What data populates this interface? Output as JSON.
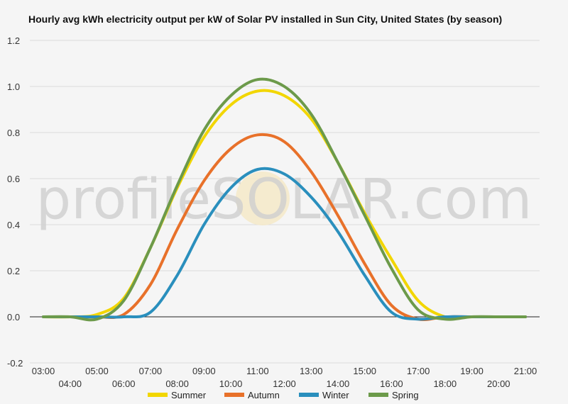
{
  "chart_data": {
    "type": "line",
    "title": "Hourly avg kWh electricity output per kW of Solar PV installed in Sun City, United States (by season)",
    "xlabel": "",
    "ylabel": "",
    "x": [
      "03:00",
      "04:00",
      "05:00",
      "06:00",
      "07:00",
      "08:00",
      "09:00",
      "10:00",
      "11:00",
      "12:00",
      "13:00",
      "14:00",
      "15:00",
      "16:00",
      "17:00",
      "18:00",
      "19:00",
      "20:00",
      "21:00"
    ],
    "ylim": [
      -0.2,
      1.2
    ],
    "yticks": [
      "-0.2",
      "0.0",
      "0.2",
      "0.4",
      "0.6",
      "0.8",
      "1.0",
      "1.2"
    ],
    "grid": true,
    "legend_position": "bottom",
    "series": [
      {
        "name": "Summer",
        "color": "#f2d600",
        "values": [
          0,
          0,
          0.01,
          0.08,
          0.3,
          0.56,
          0.78,
          0.92,
          0.98,
          0.96,
          0.86,
          0.67,
          0.45,
          0.25,
          0.07,
          0.0,
          0,
          0,
          0
        ]
      },
      {
        "name": "Autumn",
        "color": "#e8712a",
        "values": [
          0,
          0,
          0,
          0.01,
          0.14,
          0.38,
          0.59,
          0.73,
          0.79,
          0.76,
          0.63,
          0.44,
          0.23,
          0.05,
          -0.01,
          0,
          0,
          0,
          0
        ]
      },
      {
        "name": "Winter",
        "color": "#2a8fbd",
        "values": [
          0,
          0,
          0,
          0,
          0.02,
          0.18,
          0.4,
          0.56,
          0.64,
          0.62,
          0.52,
          0.37,
          0.18,
          0.02,
          -0.01,
          0,
          0,
          0,
          0
        ]
      },
      {
        "name": "Spring",
        "color": "#6c9a4a",
        "values": [
          0,
          0,
          -0.01,
          0.07,
          0.3,
          0.57,
          0.81,
          0.96,
          1.03,
          1.0,
          0.88,
          0.67,
          0.44,
          0.21,
          0.03,
          -0.01,
          0,
          0,
          0
        ]
      }
    ]
  },
  "watermark": {
    "text": "profileSOLAR.com"
  }
}
